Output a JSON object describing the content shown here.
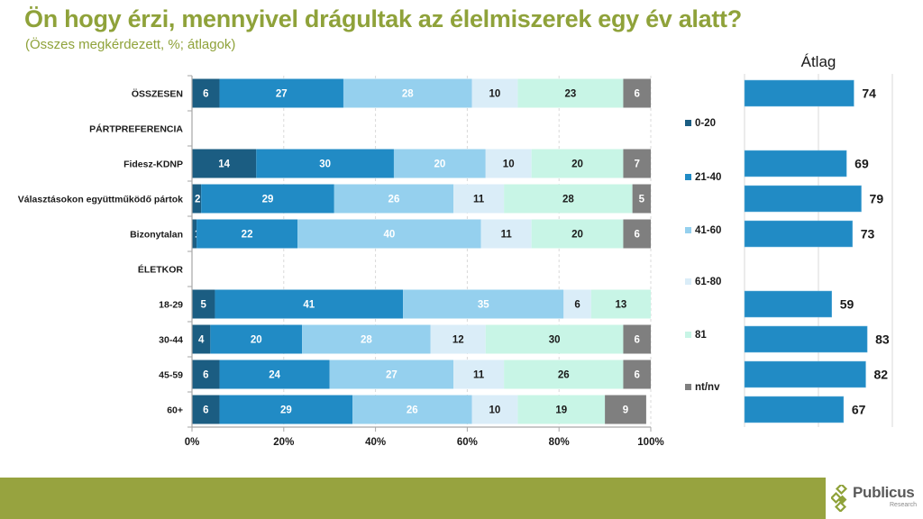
{
  "header": {
    "title": "Ön hogy érzi, mennyivel drágultak az élelmiszerek egy év alatt?",
    "subtitle": "(Összes megkérdezett, %; átlagok)"
  },
  "chart_data": [
    {
      "type": "bar",
      "orientation": "horizontal",
      "stacked": true,
      "title": "",
      "xlabel": "",
      "ylabel": "",
      "xlim": [
        0,
        100
      ],
      "x_tick_labels": [
        "0%",
        "20%",
        "40%",
        "60%",
        "80%",
        "100%"
      ],
      "grid": true,
      "legend_position": "right",
      "categories": [
        "ÖSSZESEN",
        "PÁRTPREFERENCIA",
        "Fidesz-KDNP",
        "Választásokon együttműködő pártok",
        "Bizonytalan",
        "ÉLETKOR",
        "18-29",
        "30-44",
        "45-59",
        "60+"
      ],
      "series": [
        {
          "name": "0-20",
          "color": "#1b5d82",
          "label_color": "#ffffff",
          "values": [
            6,
            null,
            14,
            2,
            1,
            null,
            5,
            4,
            6,
            6
          ]
        },
        {
          "name": "21-40",
          "color": "#218bc5",
          "label_color": "#ffffff",
          "values": [
            27,
            null,
            30,
            29,
            22,
            null,
            41,
            20,
            24,
            29
          ]
        },
        {
          "name": "41-60",
          "color": "#95d0ee",
          "label_color": "#ffffff",
          "values": [
            28,
            null,
            20,
            26,
            40,
            null,
            35,
            28,
            27,
            26
          ]
        },
        {
          "name": "61-80",
          "color": "#daedf8",
          "label_color": "#1a1a1a",
          "values": [
            10,
            null,
            10,
            11,
            11,
            null,
            6,
            12,
            11,
            10
          ]
        },
        {
          "name": "81",
          "color": "#c8f5e6",
          "label_color": "#1a1a1a",
          "values": [
            23,
            null,
            20,
            28,
            20,
            null,
            13,
            30,
            26,
            19
          ]
        },
        {
          "name": "nt/nv",
          "color": "#7f7f7f",
          "label_color": "#ffffff",
          "values": [
            6,
            null,
            7,
            5,
            6,
            null,
            null,
            6,
            6,
            9
          ]
        }
      ]
    },
    {
      "type": "bar",
      "orientation": "horizontal",
      "title": "Átlag",
      "xlim": [
        0,
        100
      ],
      "grid": true,
      "color": "#218bc5",
      "categories": [
        "ÖSSZESEN",
        "PÁRTPREFERENCIA",
        "Fidesz-KDNP",
        "Választásokon együttműködő pártok",
        "Bizonytalan",
        "ÉLETKOR",
        "18-29",
        "30-44",
        "45-59",
        "60+"
      ],
      "values": [
        74,
        null,
        69,
        79,
        73,
        null,
        59,
        83,
        82,
        67
      ]
    }
  ],
  "footer": {
    "brand": "Publicus",
    "brand_sub": "Research",
    "band_color": "#97a33f"
  }
}
